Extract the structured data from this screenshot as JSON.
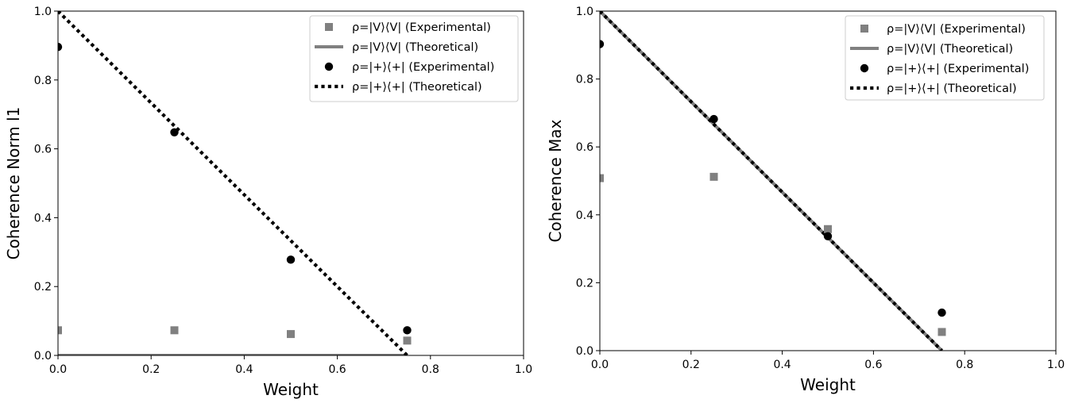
{
  "chart_data": [
    {
      "type": "scatter",
      "xlabel": "Weight",
      "ylabel": "Coherence Norm l1",
      "xlim": [
        0,
        1.0
      ],
      "ylim": [
        0,
        1.0
      ],
      "x_ticks": [
        "0.0",
        "0.2",
        "0.4",
        "0.6",
        "0.8",
        "1.0"
      ],
      "y_ticks": [
        "0.0",
        "0.2",
        "0.4",
        "0.6",
        "0.8",
        "1.0"
      ],
      "legend_position": "top-right",
      "series": [
        {
          "name": "ρ=|V⟩⟨V| (Experimental)",
          "kind": "markers",
          "marker": "square",
          "color": "#808080",
          "x": [
            0,
            0.25,
            0.5,
            0.75
          ],
          "y": [
            0.073,
            0.073,
            0.062,
            0.043
          ]
        },
        {
          "name": "ρ=|V⟩⟨V| (Theoretical)",
          "kind": "line",
          "style": "solid",
          "color": "#808080",
          "x": [
            0,
            0.75
          ],
          "y": [
            0,
            0
          ]
        },
        {
          "name": "ρ=|+⟩⟨+| (Experimental)",
          "kind": "markers",
          "marker": "circle",
          "color": "#000000",
          "x": [
            0,
            0.25,
            0.5,
            0.75
          ],
          "y": [
            0.896,
            0.648,
            0.278,
            0.073
          ]
        },
        {
          "name": "ρ=|+⟩⟨+| (Theoretical)",
          "kind": "line",
          "style": "dotted",
          "color": "#000000",
          "x": [
            0,
            0.75
          ],
          "y": [
            1.0,
            0
          ]
        }
      ]
    },
    {
      "type": "scatter",
      "xlabel": "Weight",
      "ylabel": "Coherence Max",
      "xlim": [
        0,
        1.0
      ],
      "ylim": [
        0,
        1.0
      ],
      "x_ticks": [
        "0.0",
        "0.2",
        "0.4",
        "0.6",
        "0.8",
        "1.0"
      ],
      "y_ticks": [
        "0.0",
        "0.2",
        "0.4",
        "0.6",
        "0.8",
        "1.0"
      ],
      "legend_position": "top-right",
      "series": [
        {
          "name": "ρ=|V⟩⟨V| (Experimental)",
          "kind": "markers",
          "marker": "square",
          "color": "#808080",
          "x": [
            0,
            0.25,
            0.5,
            0.75
          ],
          "y": [
            0.508,
            0.512,
            0.358,
            0.055
          ]
        },
        {
          "name": "ρ=|V⟩⟨V| (Theoretical)",
          "kind": "line",
          "style": "solid",
          "color": "#808080",
          "x": [
            0,
            0.75
          ],
          "y": [
            1.0,
            0
          ]
        },
        {
          "name": "ρ=|+⟩⟨+| (Experimental)",
          "kind": "markers",
          "marker": "circle",
          "color": "#000000",
          "x": [
            0,
            0.25,
            0.5,
            0.75
          ],
          "y": [
            0.903,
            0.682,
            0.337,
            0.112
          ]
        },
        {
          "name": "ρ=|+⟩⟨+| (Theoretical)",
          "kind": "line",
          "style": "dotted",
          "color": "#000000",
          "x": [
            0,
            0.75
          ],
          "y": [
            1.0,
            0
          ]
        }
      ]
    }
  ]
}
